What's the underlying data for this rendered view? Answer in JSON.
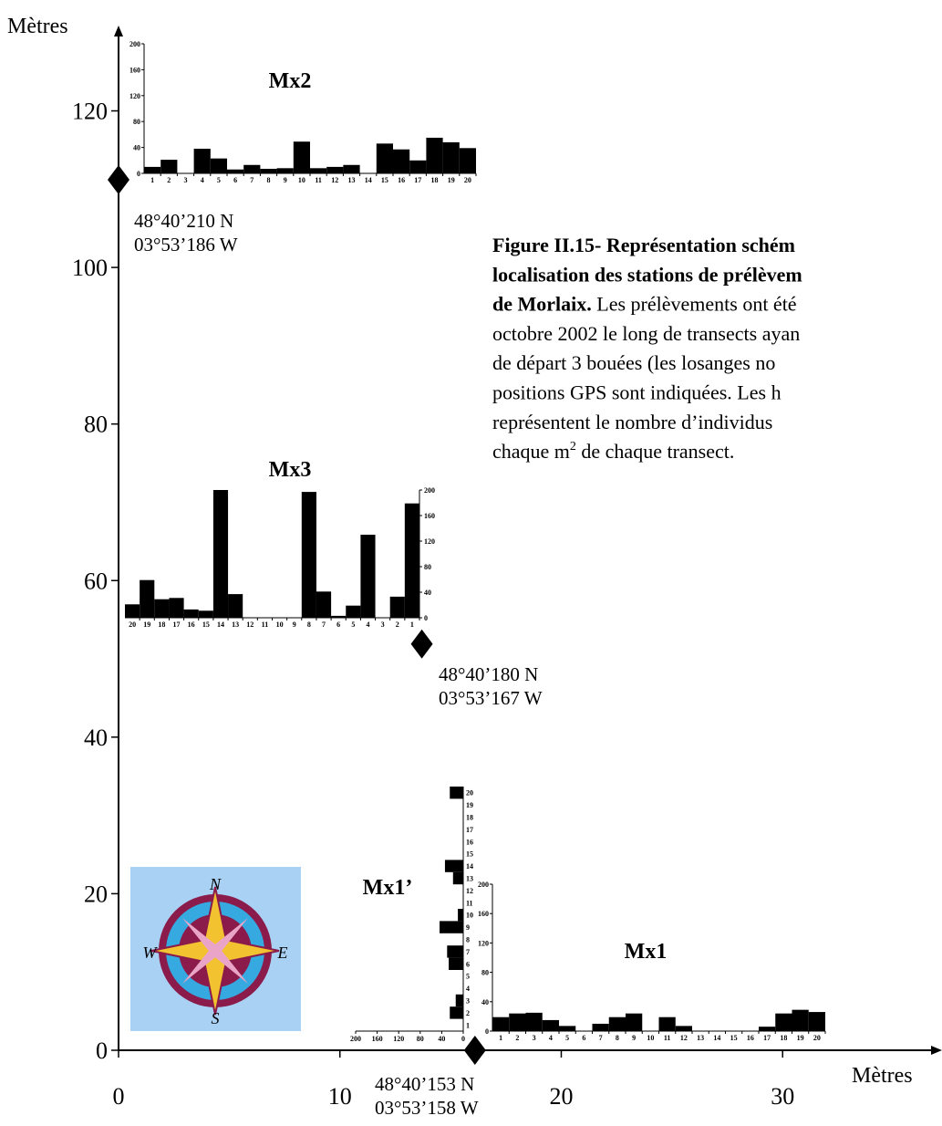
{
  "chart_data": [
    {
      "type": "map",
      "x_label": "Mètres",
      "y_label": "Mètres",
      "xlim": [
        0,
        37.2
      ],
      "ylim": [
        0,
        130.9
      ],
      "xticks": [
        0,
        10,
        20,
        30
      ],
      "yticks": [
        0,
        20,
        40,
        60,
        80,
        100,
        120
      ],
      "x": [
        0,
        13.7,
        16.1
      ],
      "y": [
        111.2,
        51.9,
        0
      ],
      "point_labels": [
        [
          "48°40’210 N",
          "03°53’186 W"
        ],
        [
          "48°40’180 N",
          "03°53’167 W"
        ],
        [
          "48°40’153 N",
          "03°53’158 W"
        ]
      ],
      "color": "#000000"
    },
    {
      "type": "bar",
      "title": "Mx2",
      "color": "#000000",
      "categories": [
        "1",
        "2",
        "3",
        "4",
        "5",
        "6",
        "7",
        "8",
        "9",
        "10",
        "11",
        "12",
        "13",
        "14",
        "15",
        "16",
        "17",
        "18",
        "19",
        "20"
      ],
      "values": [
        10,
        21,
        0,
        38,
        23,
        6,
        13,
        7,
        8,
        49,
        8,
        10,
        13,
        0,
        46,
        37,
        20,
        55,
        48,
        39
      ],
      "ylim": [
        0,
        200
      ],
      "yticks": [
        0,
        40,
        80,
        120,
        160,
        200
      ],
      "axis_side": "left"
    },
    {
      "type": "bar",
      "title": "Mx3",
      "color": "#000000",
      "categories": [
        "20",
        "19",
        "18",
        "17",
        "16",
        "15",
        "14",
        "13",
        "12",
        "11",
        "10",
        "9",
        "8",
        "7",
        "6",
        "5",
        "4",
        "3",
        "2",
        "1"
      ],
      "values": [
        21,
        59,
        29,
        31,
        13,
        11,
        200,
        37,
        0,
        0,
        0,
        0,
        197,
        41,
        3,
        19,
        130,
        0,
        33,
        179
      ],
      "ylim": [
        0,
        200
      ],
      "yticks": [
        0,
        40,
        80,
        120,
        160,
        200
      ],
      "axis_side": "right"
    },
    {
      "type": "bar",
      "title": "Mx1",
      "color": "#000000",
      "categories": [
        "1",
        "2",
        "3",
        "4",
        "5",
        "6",
        "7",
        "8",
        "9",
        "10",
        "11",
        "12",
        "13",
        "14",
        "15",
        "16",
        "17",
        "18",
        "19",
        "20"
      ],
      "values": [
        19,
        24,
        25,
        15,
        7,
        0,
        10,
        19,
        24,
        0,
        19,
        7,
        0,
        0,
        0,
        0,
        6,
        24,
        29,
        26
      ],
      "ylim": [
        0,
        200
      ],
      "yticks": [
        0,
        40,
        80,
        120,
        160,
        200
      ],
      "axis_side": "left"
    },
    {
      "type": "barh",
      "title": "Mx1’",
      "color": "#000000",
      "categories": [
        "1",
        "2",
        "3",
        "4",
        "5",
        "6",
        "7",
        "8",
        "9",
        "10",
        "11",
        "12",
        "13",
        "14",
        "15",
        "16",
        "17",
        "18",
        "19",
        "20"
      ],
      "values": [
        0,
        25,
        14,
        0,
        0,
        27,
        30,
        0,
        44,
        10,
        0,
        0,
        19,
        34,
        0,
        0,
        0,
        0,
        0,
        25
      ],
      "xlim": [
        200,
        0
      ],
      "xticks": [
        200,
        160,
        120,
        80,
        40,
        0
      ]
    }
  ],
  "compass": {
    "north": "N",
    "east": "E",
    "south": "S",
    "west": "W"
  },
  "caption": {
    "lines": [
      {
        "bold": "Figure II.15- Représentation schém"
      },
      {
        "bold": "localisation des stations de prélèvem"
      },
      {
        "bold": "de Morlaix.",
        "text": " Les prélèvements ont été"
      },
      {
        "text": "octobre 2002 le long de transects ayan"
      },
      {
        "text": "de départ 3  bouées  (les losanges no"
      },
      {
        "text": "positions GPS sont indiquées. Les h"
      },
      {
        "text": "représentent  le  nombre  d’individus"
      },
      {
        "text": "chaque m",
        "sup": "2",
        "tail": " de chaque transect."
      }
    ]
  }
}
